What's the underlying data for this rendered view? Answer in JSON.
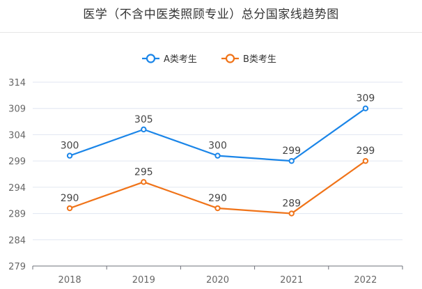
{
  "chart_data": {
    "type": "line",
    "title": "医学（不含中医类照顾专业）总分国家线趋势图",
    "xlabel": "",
    "ylabel": "",
    "categories": [
      "2018",
      "2019",
      "2020",
      "2021",
      "2022"
    ],
    "y_ticks": [
      "279",
      "284",
      "289",
      "294",
      "299",
      "304",
      "309",
      "314"
    ],
    "ylim": [
      279,
      314
    ],
    "grid": true,
    "legend_position": "top-center",
    "series": [
      {
        "name": "A类考生",
        "color": "#1a85e8",
        "values": [
          300,
          305,
          300,
          299,
          309
        ]
      },
      {
        "name": "B类考生",
        "color": "#f07318",
        "values": [
          290,
          295,
          290,
          289,
          299
        ]
      }
    ]
  }
}
